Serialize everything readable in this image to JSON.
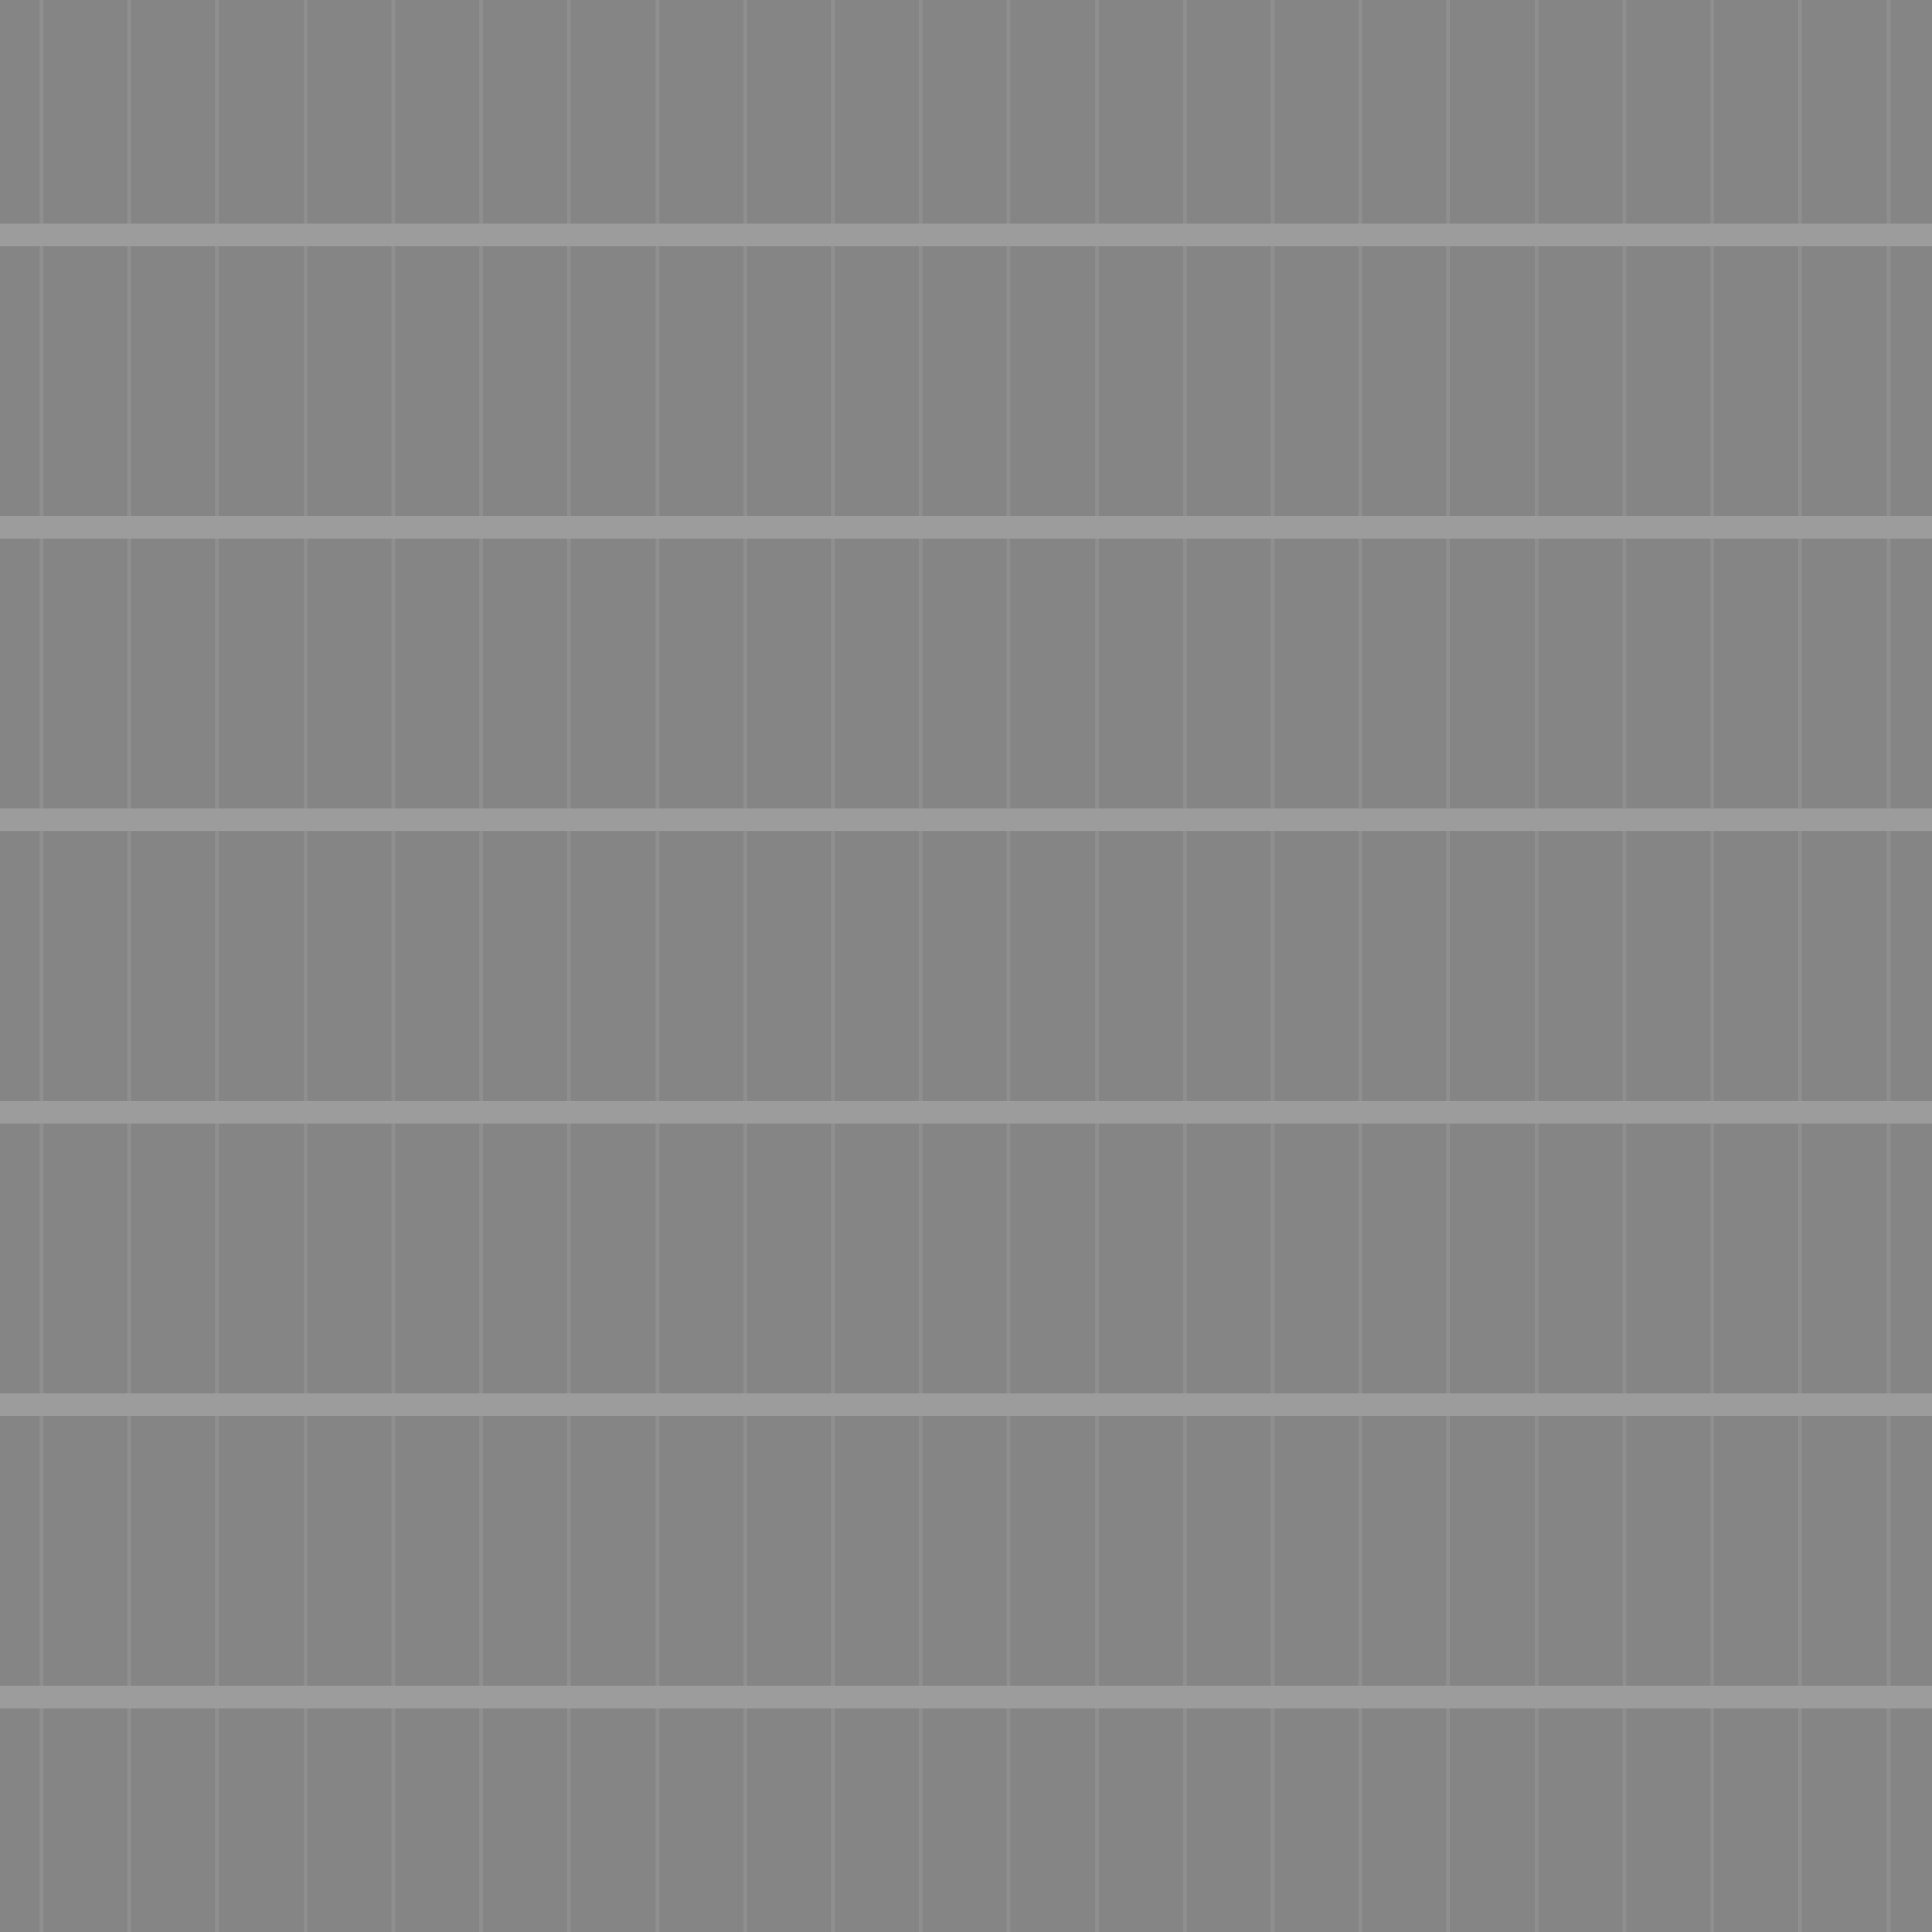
{
  "texture": {
    "description_visible_text": "",
    "colors": {
      "background": "#858585",
      "vertical_rule": "#8f8f8f",
      "horizontal_band": "#9c9c9c"
    },
    "vertical_line_count": 22,
    "horizontal_band_count": 6
  }
}
